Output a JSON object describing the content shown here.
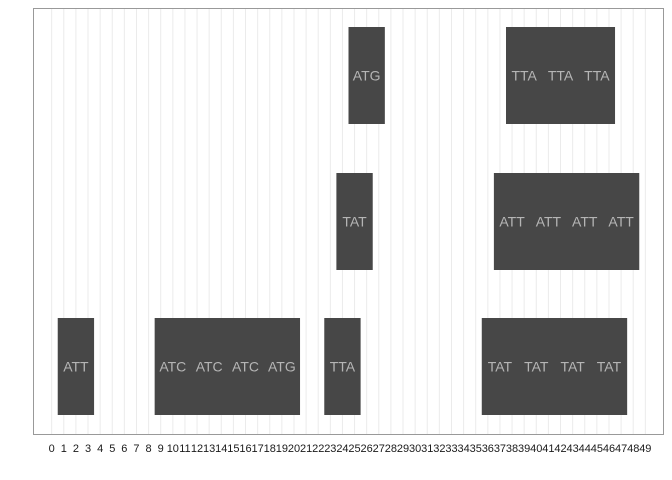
{
  "chart_data": {
    "type": "tile",
    "title": "",
    "xlabel": "",
    "ylabel": "",
    "xlim": [
      -1.5,
      50.5
    ],
    "x_ticks": [
      0,
      1,
      2,
      3,
      4,
      5,
      6,
      7,
      8,
      9,
      10,
      11,
      12,
      13,
      14,
      15,
      16,
      17,
      18,
      19,
      20,
      21,
      22,
      23,
      24,
      25,
      26,
      27,
      28,
      29,
      30,
      31,
      32,
      33,
      34,
      35,
      36,
      37,
      38,
      39,
      40,
      41,
      42,
      43,
      44,
      45,
      46,
      47,
      48,
      49
    ],
    "rows": 3,
    "grid": "vertical lines at every integer",
    "blocks": [
      {
        "row": 3,
        "start": 25,
        "end": 27,
        "codons": [
          "ATG"
        ]
      },
      {
        "row": 3,
        "start": 38,
        "end": 46,
        "codons": [
          "TTA",
          "TTA",
          "TTA"
        ]
      },
      {
        "row": 2,
        "start": 24,
        "end": 26,
        "codons": [
          "TAT"
        ]
      },
      {
        "row": 2,
        "start": 37,
        "end": 48,
        "codons": [
          "ATT",
          "ATT",
          "ATT",
          "ATT"
        ]
      },
      {
        "row": 1,
        "start": 1,
        "end": 3,
        "codons": [
          "ATT"
        ]
      },
      {
        "row": 1,
        "start": 9,
        "end": 20,
        "codons": [
          "ATC",
          "ATC",
          "ATC",
          "ATG"
        ]
      },
      {
        "row": 1,
        "start": 23,
        "end": 25,
        "codons": [
          "TTA"
        ]
      },
      {
        "row": 1,
        "start": 36,
        "end": 47,
        "codons": [
          "TAT",
          "TAT",
          "TAT",
          "TAT"
        ]
      }
    ],
    "colors": {
      "block_fill": "#474747",
      "block_text": "#b5b5b5",
      "panel_border": "#999999",
      "grid": "#ebebeb"
    }
  }
}
